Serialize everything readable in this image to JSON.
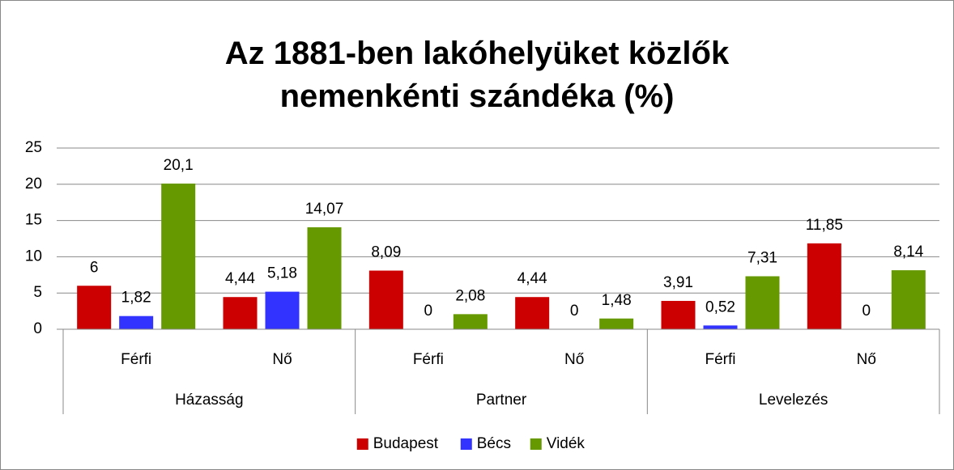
{
  "chart_data": {
    "type": "bar",
    "title": "Az 1881-ben lakóhelyüket közlők nemenkénti szándéka (%)",
    "categories": [
      "Férfi",
      "Nő",
      "Férfi",
      "Nő",
      "Férfi",
      "Nő"
    ],
    "category_groups": [
      "Házasság",
      "Partner",
      "Levelezés"
    ],
    "series": [
      {
        "name": "Budapest",
        "color": "#cc0000",
        "values": [
          6,
          4.44,
          8.09,
          4.44,
          3.91,
          11.85
        ],
        "value_labels": [
          "6",
          "4,44",
          "8,09",
          "4,44",
          "3,91",
          "11,85"
        ]
      },
      {
        "name": "Bécs",
        "color": "#3333ff",
        "values": [
          1.82,
          5.18,
          0,
          0,
          0.52,
          0
        ],
        "value_labels": [
          "1,82",
          "5,18",
          "0",
          "0",
          "0,52",
          "0"
        ]
      },
      {
        "name": "Vidék",
        "color": "#669900",
        "values": [
          20.1,
          14.07,
          2.08,
          1.48,
          7.31,
          8.14
        ],
        "value_labels": [
          "20,1",
          "14,07",
          "2,08",
          "1,48",
          "7,31",
          "8,14"
        ]
      }
    ],
    "ylim": [
      0,
      25
    ],
    "yticks": [
      0,
      5,
      10,
      15,
      20,
      25
    ],
    "grid": true,
    "legend": "bottom"
  }
}
